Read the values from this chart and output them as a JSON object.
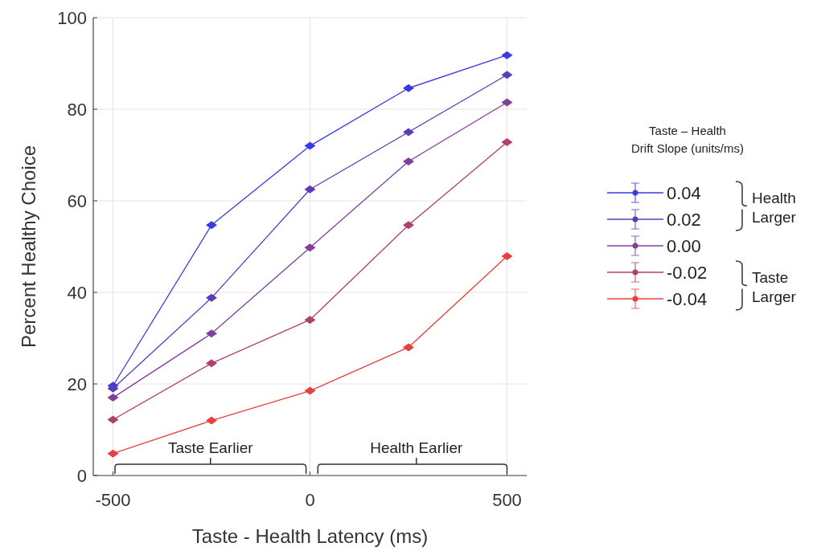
{
  "chart_data": {
    "type": "line",
    "xlabel": "Taste - Health Latency (ms)",
    "ylabel": "Percent Healthy Choice",
    "legend_title": "Taste – Health\nDrift Slope (units/ms)",
    "x": [
      -500,
      -250,
      0,
      250,
      500
    ],
    "series": [
      {
        "name": "0.04",
        "color": "#3a3ae6",
        "values": [
          19.6,
          54.7,
          72,
          84.6,
          91.8
        ]
      },
      {
        "name": "0.02",
        "color": "#5a3cb8",
        "values": [
          19,
          38.8,
          62.5,
          75,
          87.5
        ]
      },
      {
        "name": "0.00",
        "color": "#80409a",
        "values": [
          17,
          31,
          49.8,
          68.6,
          81.5
        ]
      },
      {
        "name": "-0.02",
        "color": "#b04070",
        "values": [
          12.2,
          24.5,
          34,
          54.7,
          72.8
        ]
      },
      {
        "name": "-0.04",
        "color": "#e84040",
        "values": [
          4.8,
          12,
          18.5,
          28,
          47.9
        ]
      }
    ],
    "xlim": [
      -550,
      550
    ],
    "ylim": [
      0,
      100
    ],
    "xticks": [
      -500,
      0,
      500
    ],
    "yticks": [
      0,
      20,
      40,
      60,
      80,
      100
    ],
    "grid": true,
    "legend": "right",
    "marker": "diamond",
    "line_style": "solid",
    "annotations": [
      "Taste Earlier",
      "Health Earlier",
      "Health Larger",
      "Taste Larger"
    ]
  }
}
